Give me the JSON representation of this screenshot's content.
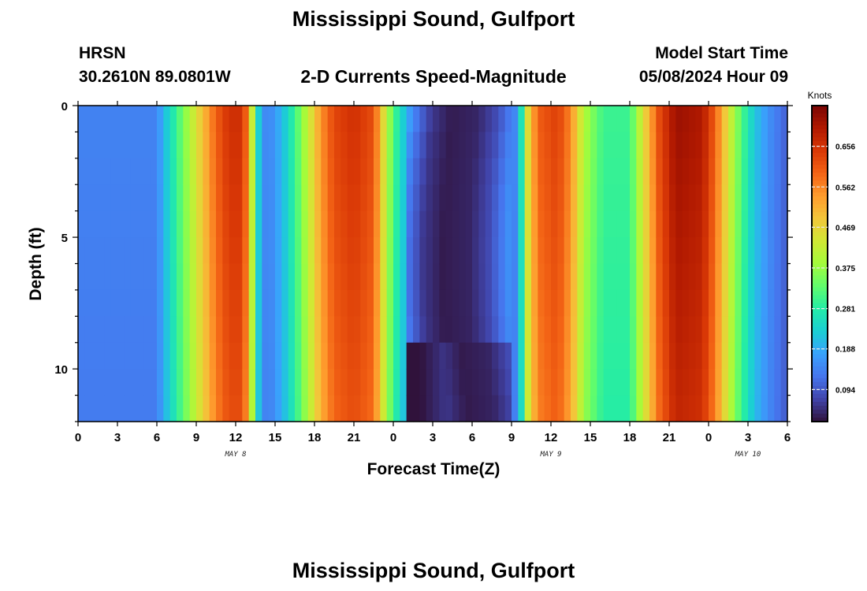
{
  "page": {
    "title_top": "Mississippi Sound, Gulfport",
    "title_bottom": "Mississippi Sound, Gulfport",
    "station_id": "HRSN",
    "station_coords": "30.2610N  89.0801W",
    "subtitle": "2-D Currents Speed-Magnitude",
    "model_start_label": "Model Start Time",
    "model_start_value": "05/08/2024 Hour 09"
  },
  "chart_data": {
    "type": "heatmap",
    "title": "2-D Currents Speed-Magnitude",
    "xlabel": "Forecast Time(Z)",
    "ylabel": "Depth (ft)",
    "x_range_hours": [
      0,
      54
    ],
    "x_ticks": [
      {
        "h": 0,
        "label": "0"
      },
      {
        "h": 3,
        "label": "3"
      },
      {
        "h": 6,
        "label": "6"
      },
      {
        "h": 9,
        "label": "9"
      },
      {
        "h": 12,
        "label": "12"
      },
      {
        "h": 15,
        "label": "15"
      },
      {
        "h": 18,
        "label": "18"
      },
      {
        "h": 21,
        "label": "21"
      },
      {
        "h": 24,
        "label": "0"
      },
      {
        "h": 27,
        "label": "3"
      },
      {
        "h": 30,
        "label": "6"
      },
      {
        "h": 33,
        "label": "9"
      },
      {
        "h": 36,
        "label": "12"
      },
      {
        "h": 39,
        "label": "15"
      },
      {
        "h": 42,
        "label": "18"
      },
      {
        "h": 45,
        "label": "21"
      },
      {
        "h": 48,
        "label": "0"
      },
      {
        "h": 51,
        "label": "3"
      },
      {
        "h": 54,
        "label": "6"
      }
    ],
    "date_labels": [
      {
        "h": 12,
        "label": "MAY 8"
      },
      {
        "h": 36,
        "label": "MAY 9"
      },
      {
        "h": 51,
        "label": "MAY 10"
      }
    ],
    "y_range_ft": [
      0,
      12
    ],
    "y_ticks": [
      {
        "v": 0,
        "label": "0"
      },
      {
        "v": 5,
        "label": "5"
      },
      {
        "v": 10,
        "label": "10"
      }
    ],
    "colorbar": {
      "unit": "Knots",
      "range": [
        0.02,
        0.75
      ],
      "ticks": [
        0.094,
        0.188,
        0.281,
        0.375,
        0.469,
        0.562,
        0.656
      ],
      "tick_labels": [
        "0.094",
        "0.188",
        "0.281",
        "0.375",
        "0.469",
        "0.562",
        "0.656"
      ],
      "colors": [
        "#30123b",
        "#4145ab",
        "#4675ed",
        "#39a2fc",
        "#1bcfd4",
        "#24eca6",
        "#61fc6c",
        "#a4fc3b",
        "#d1e834",
        "#f3c63a",
        "#fe9b2d",
        "#f36315",
        "#d93806",
        "#b11901",
        "#7a0403"
      ]
    },
    "columns_per_hour": 2,
    "depth_rows_ft": [
      0,
      1,
      2,
      3,
      4,
      5,
      6,
      7,
      8,
      9,
      10,
      11
    ],
    "profile_note": "surface speed by time",
    "surface_speed_knots": [
      [
        0,
        0.14
      ],
      [
        6,
        0.14
      ],
      [
        6.5,
        0.2
      ],
      [
        7.5,
        0.3
      ],
      [
        8.5,
        0.4
      ],
      [
        9.5,
        0.5
      ],
      [
        10.5,
        0.6
      ],
      [
        11.5,
        0.66
      ],
      [
        12.5,
        0.66
      ],
      [
        13,
        0.55
      ],
      [
        13.5,
        0.3
      ],
      [
        14,
        0.16
      ],
      [
        14.5,
        0.14
      ],
      [
        15.5,
        0.2
      ],
      [
        16.5,
        0.3
      ],
      [
        17.5,
        0.42
      ],
      [
        18.5,
        0.55
      ],
      [
        19.5,
        0.63
      ],
      [
        21,
        0.66
      ],
      [
        22.5,
        0.62
      ],
      [
        23.3,
        0.45
      ],
      [
        24,
        0.32
      ],
      [
        25,
        0.2
      ],
      [
        26,
        0.12
      ],
      [
        27,
        0.06
      ],
      [
        28.5,
        0.03
      ],
      [
        30.5,
        0.04
      ],
      [
        32,
        0.08
      ],
      [
        33.5,
        0.16
      ],
      [
        34.2,
        0.45
      ],
      [
        35,
        0.6
      ],
      [
        36.5,
        0.64
      ],
      [
        37.5,
        0.56
      ],
      [
        38.5,
        0.4
      ],
      [
        40,
        0.3
      ],
      [
        42,
        0.3
      ],
      [
        43,
        0.45
      ],
      [
        44.2,
        0.62
      ],
      [
        45.5,
        0.72
      ],
      [
        47.5,
        0.7
      ],
      [
        48.5,
        0.6
      ],
      [
        49.5,
        0.45
      ],
      [
        50.5,
        0.32
      ],
      [
        51.5,
        0.22
      ],
      [
        52.5,
        0.16
      ],
      [
        53.5,
        0.12
      ],
      [
        54,
        0.1
      ]
    ]
  }
}
